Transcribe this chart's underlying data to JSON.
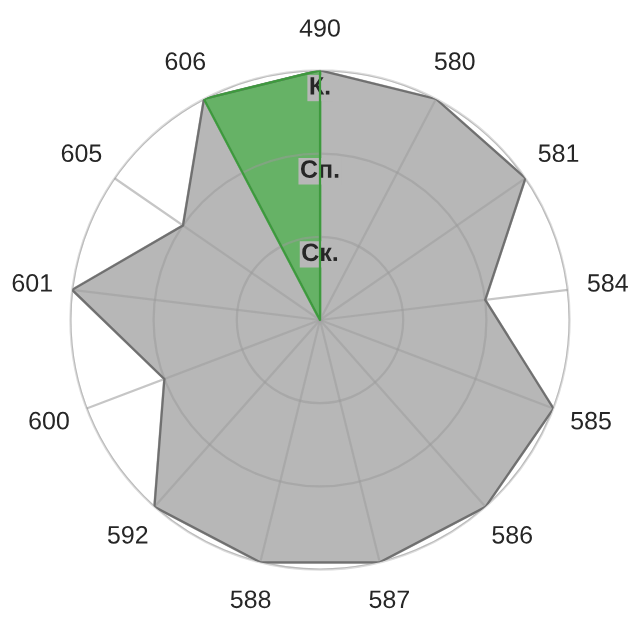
{
  "chart_data": {
    "type": "radar",
    "categories": [
      "490",
      "580",
      "581",
      "584",
      "585",
      "586",
      "587",
      "588",
      "592",
      "600",
      "601",
      "605",
      "606"
    ],
    "ylim": [
      0,
      3
    ],
    "yticks": [
      {
        "value": 1,
        "label": "Ск."
      },
      {
        "value": 2,
        "label": "Сп."
      },
      {
        "value": 3,
        "label": "К."
      }
    ],
    "grid": true,
    "legend": false,
    "series": [
      {
        "color": "#b7b7b7",
        "values": [
          3,
          3,
          3,
          2,
          3,
          3,
          3,
          3,
          3,
          2,
          3,
          2,
          3
        ]
      },
      {
        "color": "#66b266",
        "values": [
          3,
          0,
          0,
          0,
          0,
          0,
          0,
          0,
          0,
          0,
          0,
          0,
          3
        ]
      }
    ]
  }
}
